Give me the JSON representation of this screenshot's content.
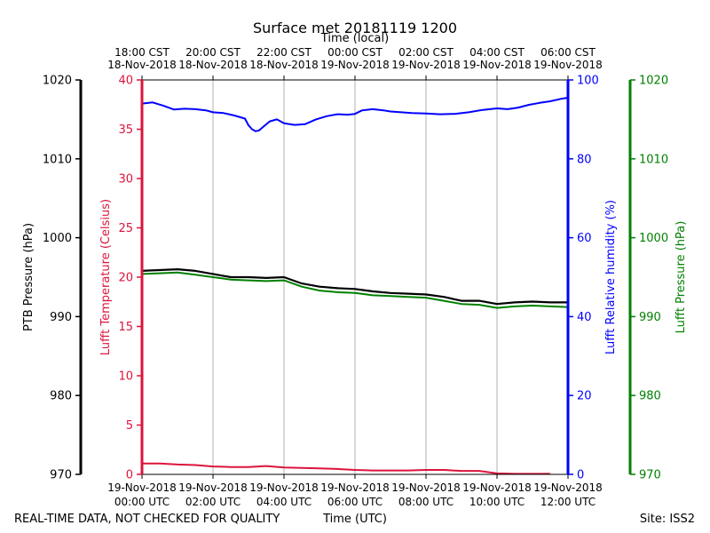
{
  "chart_data": {
    "type": "line",
    "title": "Surface met 20181119 1200",
    "top_xlabel": "Time (local)",
    "xlabel": "Time (UTC)",
    "footer_left": "REAL-TIME DATA, NOT CHECKED FOR QUALITY",
    "footer_right": "Site: ISS2",
    "x_hours_range": [
      0,
      12
    ],
    "x_ticks_utc": [
      {
        "hour": 0,
        "line1": "19-Nov-2018",
        "line2": "00:00 UTC"
      },
      {
        "hour": 2,
        "line1": "19-Nov-2018",
        "line2": "02:00 UTC"
      },
      {
        "hour": 4,
        "line1": "19-Nov-2018",
        "line2": "04:00 UTC"
      },
      {
        "hour": 6,
        "line1": "19-Nov-2018",
        "line2": "06:00 UTC"
      },
      {
        "hour": 8,
        "line1": "19-Nov-2018",
        "line2": "08:00 UTC"
      },
      {
        "hour": 10,
        "line1": "19-Nov-2018",
        "line2": "10:00 UTC"
      },
      {
        "hour": 12,
        "line1": "19-Nov-2018",
        "line2": "12:00 UTC"
      }
    ],
    "x_ticks_local": [
      {
        "hour": 0,
        "line1": "18:00 CST",
        "line2": "18-Nov-2018"
      },
      {
        "hour": 2,
        "line1": "20:00 CST",
        "line2": "18-Nov-2018"
      },
      {
        "hour": 4,
        "line1": "22:00 CST",
        "line2": "18-Nov-2018"
      },
      {
        "hour": 6,
        "line1": "00:00 CST",
        "line2": "19-Nov-2018"
      },
      {
        "hour": 8,
        "line1": "02:00 CST",
        "line2": "19-Nov-2018"
      },
      {
        "hour": 10,
        "line1": "04:00 CST",
        "line2": "19-Nov-2018"
      },
      {
        "hour": 12,
        "line1": "06:00 CST",
        "line2": "19-Nov-2018"
      }
    ],
    "axes": {
      "ptb": {
        "label": "PTB Pressure (hPa)",
        "ylim": [
          970,
          1020
        ],
        "ticks": [
          970,
          980,
          990,
          1000,
          1010,
          1020
        ],
        "color": "#000000"
      },
      "temp": {
        "label": "Lufft Temperature (Celsius)",
        "ylim": [
          0,
          40
        ],
        "ticks": [
          0,
          5,
          10,
          15,
          20,
          25,
          30,
          35,
          40
        ],
        "color": "#dc143c"
      },
      "rh": {
        "label": "Lufft Relative humidity (%)",
        "ylim": [
          0,
          100
        ],
        "ticks": [
          0,
          20,
          40,
          60,
          80,
          100
        ],
        "color": "#0000ff"
      },
      "lpres": {
        "label": "Lufft Pressure (hPa)",
        "ylim": [
          970,
          1020
        ],
        "ticks": [
          970,
          980,
          990,
          1000,
          1010,
          1020
        ],
        "color": "#008000"
      }
    },
    "series": [
      {
        "name": "Lufft Relative humidity",
        "axis": "rh",
        "color": "#0000ff",
        "x": [
          0,
          0.3,
          0.6,
          0.9,
          1.2,
          1.5,
          1.8,
          2.0,
          2.3,
          2.6,
          2.9,
          3.0,
          3.1,
          3.2,
          3.3,
          3.4,
          3.6,
          3.8,
          4.0,
          4.3,
          4.6,
          4.9,
          5.2,
          5.5,
          5.8,
          6.0,
          6.2,
          6.5,
          6.8,
          7.0,
          7.3,
          7.6,
          8.0,
          8.4,
          8.8,
          9.2,
          9.6,
          10.0,
          10.3,
          10.6,
          10.9,
          11.2,
          11.5,
          11.8,
          12.0
        ],
        "values": [
          94,
          94.3,
          93.5,
          92.5,
          92.7,
          92.6,
          92.3,
          91.8,
          91.6,
          91.0,
          90.2,
          88.5,
          87.5,
          87.0,
          87.2,
          88.0,
          89.5,
          90.0,
          89.0,
          88.6,
          88.8,
          90.0,
          90.8,
          91.3,
          91.2,
          91.4,
          92.3,
          92.6,
          92.3,
          92.0,
          91.8,
          91.6,
          91.5,
          91.3,
          91.4,
          91.8,
          92.4,
          92.8,
          92.6,
          93.0,
          93.7,
          94.2,
          94.6,
          95.2,
          95.5
        ]
      },
      {
        "name": "PTB Pressure",
        "axis": "ptb",
        "color": "#000000",
        "x": [
          0,
          0.5,
          1.0,
          1.5,
          2.0,
          2.5,
          3.0,
          3.5,
          4.0,
          4.5,
          5.0,
          5.5,
          6.0,
          6.5,
          7.0,
          7.5,
          8.0,
          8.5,
          9.0,
          9.5,
          10.0,
          10.5,
          11.0,
          11.5,
          12.0
        ],
        "values": [
          995.8,
          995.9,
          996.0,
          995.8,
          995.4,
          995.0,
          995.0,
          994.9,
          995.0,
          994.2,
          993.8,
          993.6,
          993.5,
          993.2,
          993.0,
          992.9,
          992.8,
          992.5,
          992.0,
          992.0,
          991.6,
          991.8,
          991.9,
          991.8,
          991.8
        ]
      },
      {
        "name": "Lufft Pressure",
        "axis": "lpres",
        "color": "#008000",
        "x": [
          0,
          0.5,
          1.0,
          1.5,
          2.0,
          2.5,
          3.0,
          3.5,
          4.0,
          4.5,
          5.0,
          5.5,
          6.0,
          6.5,
          7.0,
          7.5,
          8.0,
          8.5,
          9.0,
          9.5,
          10.0,
          10.5,
          11.0,
          11.5,
          12.0
        ],
        "values": [
          995.4,
          995.5,
          995.6,
          995.3,
          995.0,
          994.7,
          994.6,
          994.5,
          994.6,
          993.8,
          993.3,
          993.1,
          993.0,
          992.7,
          992.6,
          992.5,
          992.4,
          992.0,
          991.6,
          991.5,
          991.1,
          991.3,
          991.4,
          991.3,
          991.2
        ]
      },
      {
        "name": "Lufft Temperature",
        "axis": "temp",
        "color": "#dc143c",
        "x": [
          0,
          0.5,
          1.0,
          1.5,
          2.0,
          2.5,
          3.0,
          3.5,
          4.0,
          4.5,
          5.0,
          5.5,
          6.0,
          6.5,
          7.0,
          7.5,
          8.0,
          8.5,
          9.0,
          9.5,
          10.0,
          10.5,
          11.0,
          11.5
        ],
        "values": [
          1.1,
          1.1,
          1.0,
          0.95,
          0.8,
          0.75,
          0.75,
          0.85,
          0.7,
          0.65,
          0.6,
          0.55,
          0.45,
          0.4,
          0.4,
          0.4,
          0.45,
          0.45,
          0.35,
          0.35,
          0.1,
          0.05,
          0.05,
          0.05
        ]
      }
    ]
  }
}
